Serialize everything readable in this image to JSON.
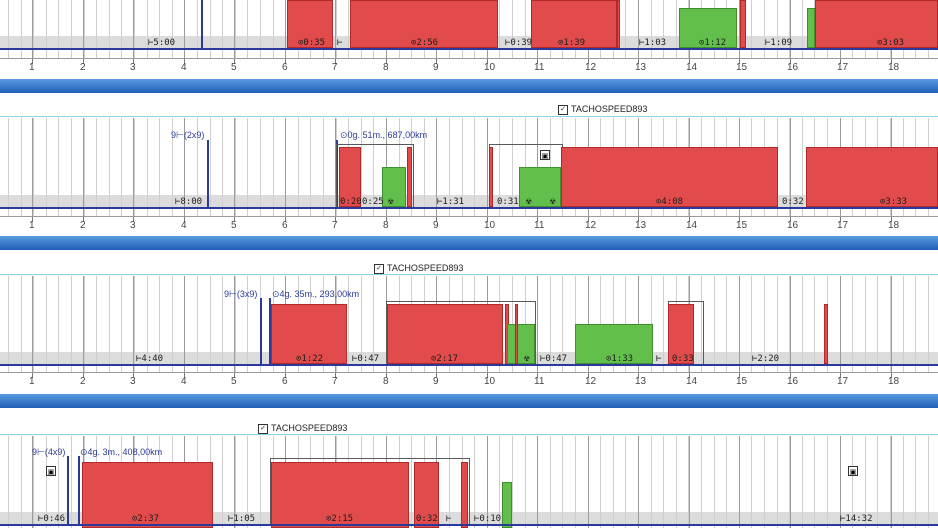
{
  "hours": [
    "1",
    "2",
    "3",
    "4",
    "5",
    "6",
    "7",
    "8",
    "9",
    "10",
    "11",
    "12",
    "13",
    "14",
    "15",
    "16",
    "17",
    "18"
  ],
  "tracks": [
    {
      "title": "",
      "labels": [
        {
          "text": "⊢5:00",
          "name": "rest-label"
        },
        {
          "text": "⊙0:35",
          "name": "drive-label"
        },
        {
          "text": "⊢",
          "name": "rest-label"
        },
        {
          "text": "⊙2:56",
          "name": "drive-label"
        },
        {
          "text": "⊢0:39",
          "name": "rest-label"
        },
        {
          "text": "⊙1:39",
          "name": "drive-label"
        },
        {
          "text": "⊢1:03",
          "name": "rest-label"
        },
        {
          "text": "⊙1:12",
          "name": "work-label"
        },
        {
          "text": "⊢1:09",
          "name": "rest-label"
        },
        {
          "text": "⊙3:03",
          "name": "drive-label"
        }
      ]
    },
    {
      "title": "TACHOSPEED893",
      "flag": "9⊢(2x9)",
      "trip": "⊙0g. 51m., 687,00km",
      "labels": [
        {
          "text": "⊢8:00",
          "name": "rest-label"
        },
        {
          "text": "0:20",
          "name": "drive-label"
        },
        {
          "text": "0:25",
          "name": "work-label"
        },
        {
          "text": "☢",
          "name": "work-icon"
        },
        {
          "text": "⊢1:31",
          "name": "rest-label"
        },
        {
          "text": "0:31",
          "name": "drive-label"
        },
        {
          "text": "☢",
          "name": "work-icon"
        },
        {
          "text": "☢",
          "name": "work-icon"
        },
        {
          "text": "⊙4:08",
          "name": "drive-label"
        },
        {
          "text": "0:32",
          "name": "rest-label"
        },
        {
          "text": "⊙3:33",
          "name": "drive-label"
        }
      ]
    },
    {
      "title": "TACHOSPEED893",
      "flag": "9⊢(3x9)",
      "trip": "⊙4g. 35m., 293,00km",
      "labels": [
        {
          "text": "⊢4:40",
          "name": "rest-label"
        },
        {
          "text": "⊙1:22",
          "name": "drive-label"
        },
        {
          "text": "⊢0:47",
          "name": "rest-label"
        },
        {
          "text": "⊙2:17",
          "name": "drive-label"
        },
        {
          "text": "☢",
          "name": "work-icon"
        },
        {
          "text": "⊢0:47",
          "name": "rest-label"
        },
        {
          "text": "⊙1:33",
          "name": "work-label"
        },
        {
          "text": "⊢",
          "name": "rest-label"
        },
        {
          "text": "0:33",
          "name": "drive-label"
        },
        {
          "text": "⊢2:20",
          "name": "rest-label"
        }
      ]
    },
    {
      "title": "TACHOSPEED893",
      "flag": "9⊢(4x9)",
      "trip": "⊙4g. 3m., 408,00km",
      "labels": [
        {
          "text": "⊢0:46",
          "name": "rest-label"
        },
        {
          "text": "⊙2:37",
          "name": "drive-label"
        },
        {
          "text": "⊢1:05",
          "name": "rest-label"
        },
        {
          "text": "⊙2:15",
          "name": "drive-label"
        },
        {
          "text": "0:32",
          "name": "drive-label"
        },
        {
          "text": "⊢",
          "name": "rest-label"
        },
        {
          "text": "⊢0:10",
          "name": "rest-label"
        },
        {
          "text": "⊢14:32",
          "name": "rest-label"
        }
      ]
    }
  ]
}
